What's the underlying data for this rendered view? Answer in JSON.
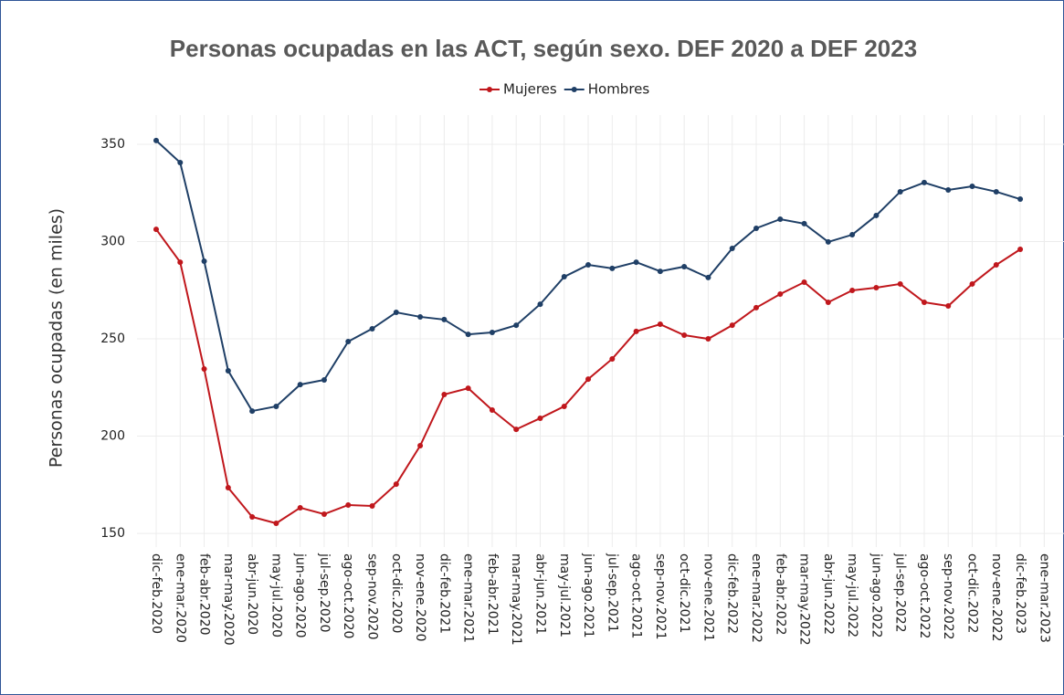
{
  "chart_data": {
    "type": "line",
    "title": "Personas ocupadas en las ACT, según sexo. DEF 2020 a DEF 2023",
    "y_label": "Personas ocupadas (en miles)",
    "categories": [
      "dic-feb.2020",
      "ene-mar.2020",
      "feb-abr.2020",
      "mar-may.2020",
      "abr-jun.2020",
      "may-jul.2020",
      "jun-ago.2020",
      "jul-sep.2020",
      "ago-oct.2020",
      "sep-nov.2020",
      "oct-dic.2020",
      "nov-ene.2020",
      "dic-feb.2021",
      "ene-mar.2021",
      "feb-abr.2021",
      "mar-may.2021",
      "abr-jun.2021",
      "may-jul.2021",
      "jun-ago.2021",
      "jul-sep.2021",
      "ago-oct.2021",
      "sep-nov.2021",
      "oct-dic.2021",
      "nov-ene.2021",
      "dic-feb.2022",
      "ene-mar.2022",
      "feb-abr.2022",
      "mar-may.2022",
      "abr-jun.2022",
      "may-jul.2022",
      "jun-ago.2022",
      "jul-sep.2022",
      "ago-oct.2022",
      "sep-nov.2022",
      "oct-dic.2022",
      "nov-ene.2022",
      "dic-feb.2023",
      "ene-mar.2023",
      "feb-abr.2023"
    ],
    "series": [
      {
        "name": "Mujeres",
        "color": "#c0171c",
        "values": [
          306.3,
          289.4,
          234.5,
          173.5,
          158.5,
          155.2,
          163.2,
          159.9,
          164.6,
          164.1,
          175.3,
          195.1,
          221.4,
          224.6,
          213.4,
          203.5,
          209.2,
          215.3,
          229.3,
          239.7,
          253.8,
          257.5,
          251.9,
          250.0,
          257.0,
          266.0,
          273.0,
          279.1,
          268.8,
          274.9,
          276.3,
          278.2,
          268.8,
          266.9,
          278.2,
          288.0,
          296.0,
          null,
          null
        ]
      },
      {
        "name": "Hombres",
        "color": "#1f3f66",
        "values": [
          351.9,
          340.6,
          289.9,
          233.6,
          212.9,
          215.3,
          226.5,
          228.9,
          248.6,
          255.2,
          263.6,
          261.3,
          259.9,
          252.3,
          253.3,
          257.0,
          267.8,
          281.9,
          288.0,
          286.2,
          289.4,
          284.7,
          287.1,
          281.5,
          296.5,
          306.8,
          311.5,
          309.2,
          299.8,
          303.5,
          313.4,
          325.6,
          330.3,
          326.5,
          328.4,
          325.6,
          321.8,
          null,
          null
        ]
      }
    ],
    "ylim": [
      143,
      365
    ],
    "yticks": [
      150,
      200,
      250,
      300,
      350
    ],
    "grid": true,
    "legend": "top"
  }
}
